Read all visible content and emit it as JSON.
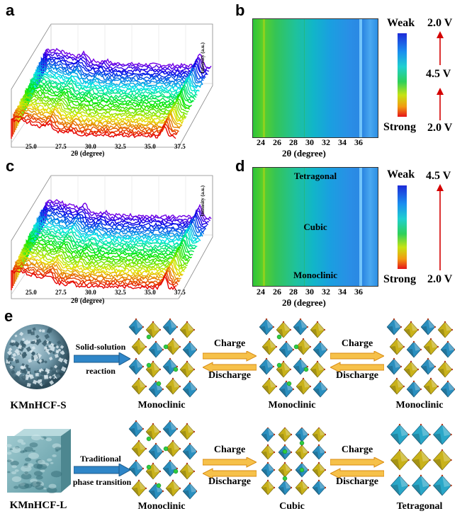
{
  "panels": {
    "a": "a",
    "b": "b",
    "c": "c",
    "d": "d",
    "e": "e"
  },
  "waterfall": {
    "x_ticks": [
      "25.0",
      "27.5",
      "30.0",
      "32.5",
      "35.0",
      "37.5"
    ],
    "x_label": "2θ (degree)",
    "z_label": "Intensity (a.u.)"
  },
  "heatmap": {
    "x_ticks": [
      "24",
      "26",
      "28",
      "30",
      "32",
      "34",
      "36"
    ],
    "x_label": "2θ (degree)",
    "scale_top": "Weak",
    "scale_bottom": "Strong"
  },
  "voltages_b": [
    "2.0 V",
    "4.5 V",
    "2.0 V"
  ],
  "voltages_d": [
    "4.5 V",
    "2.0 V"
  ],
  "phases_d": [
    "Tetragonal",
    "Cubic",
    "Monoclinic"
  ],
  "scheme": {
    "row1": {
      "sample": "KMnHCF-S",
      "process_line1": "Solid-solution",
      "process_line2": "reaction",
      "structures": [
        "Monoclinic",
        "Monoclinic",
        "Monoclinic"
      ],
      "charge": "Charge",
      "discharge": "Discharge"
    },
    "row2": {
      "sample": "KMnHCF-L",
      "process_line1": "Traditional",
      "process_line2": "phase transition",
      "structures": [
        "Monoclinic",
        "Cubic",
        "Tetragonal"
      ],
      "charge": "Charge",
      "discharge": "Discharge"
    }
  },
  "colors": {
    "arrow_red": "#d40000",
    "arrow_orange": "#f6a623",
    "arrow_blue": "#2f86c8",
    "octa_blue": "#2a8fbf",
    "octa_yellow": "#c9b21a",
    "k_ion": "#2ecc40"
  }
}
